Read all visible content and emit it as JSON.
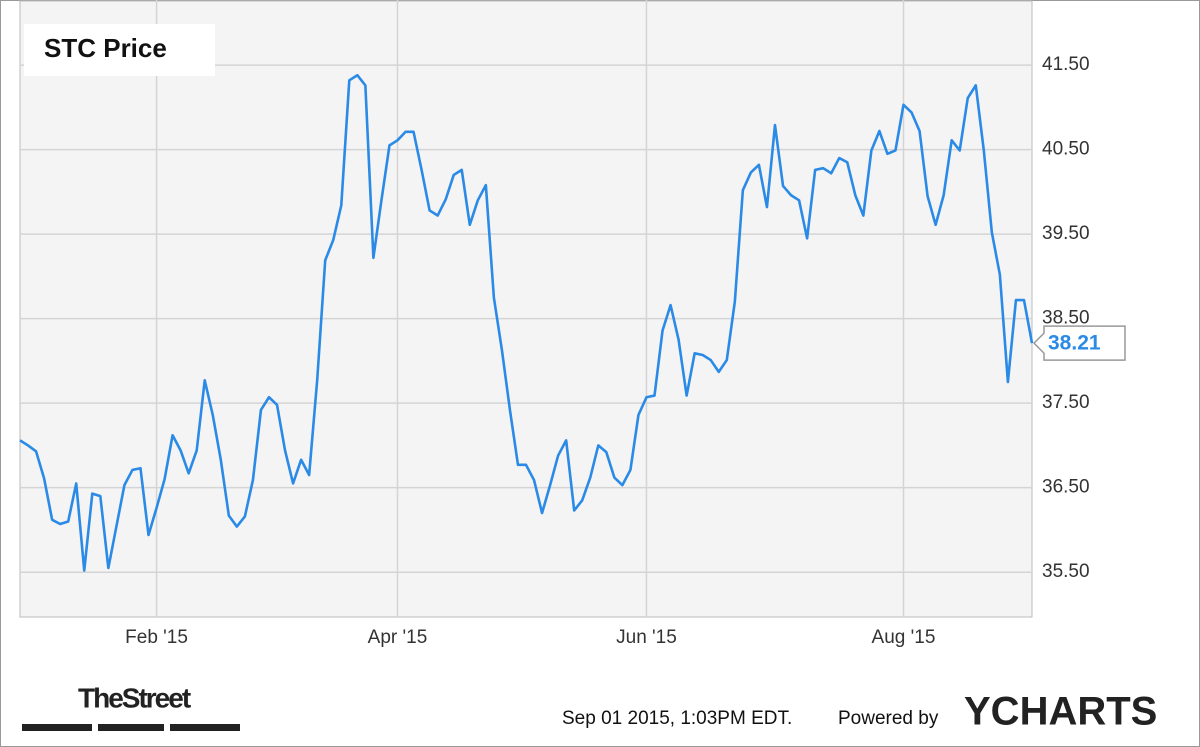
{
  "chart_data": {
    "type": "line",
    "title": "STC Price",
    "categories": [
      null,
      null,
      null,
      null,
      null,
      null,
      null,
      null,
      null,
      null,
      null,
      null,
      null,
      null,
      null,
      null,
      null,
      "Feb '15",
      null,
      null,
      null,
      null,
      null,
      null,
      null,
      null,
      null,
      null,
      null,
      null,
      null,
      null,
      null,
      null,
      null,
      null,
      null,
      null,
      null,
      null,
      null,
      null,
      null,
      null,
      null,
      null,
      null,
      "Apr '15",
      null,
      null,
      null,
      null,
      null,
      null,
      null,
      null,
      null,
      null,
      null,
      null,
      null,
      null,
      null,
      null,
      null,
      null,
      null,
      null,
      null,
      null,
      null,
      null,
      null,
      null,
      null,
      null,
      null,
      null,
      "Jun '15",
      null,
      null,
      null,
      null,
      null,
      null,
      null,
      null,
      null,
      null,
      null,
      null,
      null,
      null,
      null,
      null,
      null,
      null,
      null,
      null,
      null,
      null,
      null,
      null,
      null,
      null,
      null,
      null,
      null,
      null,
      null,
      "Aug '15",
      null,
      null,
      null,
      null,
      null,
      null,
      null,
      null,
      null,
      null,
      null,
      null,
      null,
      null,
      null,
      null
    ],
    "values": [
      37.06,
      37.0,
      36.93,
      36.61,
      36.12,
      36.07,
      36.1,
      36.55,
      35.52,
      36.43,
      36.4,
      35.55,
      36.04,
      36.53,
      36.71,
      36.73,
      35.94,
      36.26,
      36.6,
      37.12,
      36.94,
      36.67,
      36.94,
      37.77,
      37.36,
      36.83,
      36.17,
      36.04,
      36.16,
      36.59,
      37.42,
      37.57,
      37.48,
      36.94,
      36.55,
      36.83,
      36.65,
      37.77,
      39.19,
      39.43,
      39.84,
      41.32,
      41.38,
      41.26,
      39.22,
      39.9,
      40.55,
      40.61,
      40.71,
      40.71,
      40.26,
      39.78,
      39.72,
      39.91,
      40.2,
      40.26,
      39.61,
      39.9,
      40.08,
      38.75,
      38.13,
      37.42,
      36.77,
      36.77,
      36.59,
      36.2,
      36.53,
      36.88,
      37.06,
      36.23,
      36.35,
      36.62,
      37.0,
      36.92,
      36.62,
      36.53,
      36.71,
      37.36,
      37.57,
      37.59,
      38.36,
      38.66,
      38.25,
      37.59,
      38.09,
      38.07,
      38.01,
      37.87,
      38.01,
      38.7,
      40.02,
      40.23,
      40.32,
      39.82,
      40.79,
      40.07,
      39.96,
      39.9,
      39.45,
      40.26,
      40.28,
      40.22,
      40.4,
      40.35,
      39.96,
      39.72,
      40.49,
      40.72,
      40.45,
      40.49,
      41.03,
      40.94,
      40.72,
      39.95,
      39.61,
      39.96,
      40.61,
      40.49,
      41.11,
      41.26,
      40.49,
      39.52,
      39.02,
      37.75,
      38.72,
      38.72,
      38.21
    ],
    "color": "#2a8ae6",
    "ylim": [
      34.97,
      42.27
    ],
    "yticks": [
      {
        "value": 35.5,
        "label": "35.50"
      },
      {
        "value": 36.5,
        "label": "36.50"
      },
      {
        "value": 37.5,
        "label": "37.50"
      },
      {
        "value": 38.5,
        "label": "38.50"
      },
      {
        "value": 39.5,
        "label": "39.50"
      },
      {
        "value": 40.5,
        "label": "40.50"
      },
      {
        "value": 41.5,
        "label": "41.50"
      }
    ],
    "grid": true
  },
  "footer": {
    "source": "TheStreet",
    "timestamp": "Sep 01 2015, 1:03PM EDT.",
    "powered_by": "Powered by",
    "brand": "YCHARTS"
  }
}
